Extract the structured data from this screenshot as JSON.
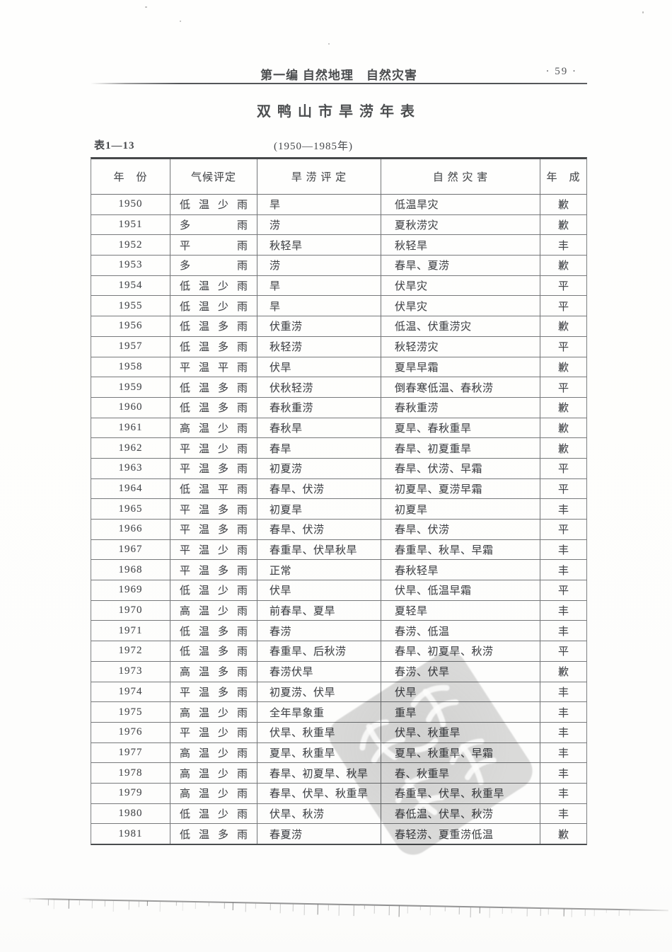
{
  "page": {
    "header": {
      "section_title": "第一编 自然地理　自然灾害",
      "page_number": "· 59 ·"
    },
    "title": "双鸭山市旱涝年表",
    "table_label": "表1—13",
    "period": "(1950—1985年)",
    "columns": [
      "年　份",
      "气候评定",
      "旱 涝 评 定",
      "自 然 灾 害",
      "年　成"
    ],
    "rows": [
      {
        "year": "1950",
        "climate": "低温少雨",
        "assessment": "旱",
        "disasters": "低温旱灾",
        "harvest": "歉"
      },
      {
        "year": "1951",
        "climate": "多雨",
        "assessment": "涝",
        "disasters": "夏秋涝灾",
        "harvest": "歉"
      },
      {
        "year": "1952",
        "climate": "平雨",
        "assessment": "秋轻旱",
        "disasters": "秋轻旱",
        "harvest": "丰"
      },
      {
        "year": "1953",
        "climate": "多雨",
        "assessment": "涝",
        "disasters": "春旱、夏涝",
        "harvest": "歉"
      },
      {
        "year": "1954",
        "climate": "低温少雨",
        "assessment": "旱",
        "disasters": "伏旱灾",
        "harvest": "平"
      },
      {
        "year": "1955",
        "climate": "低温少雨",
        "assessment": "旱",
        "disasters": "伏旱灾",
        "harvest": "平"
      },
      {
        "year": "1956",
        "climate": "低温多雨",
        "assessment": "伏重涝",
        "disasters": "低温、伏重涝灾",
        "harvest": "歉"
      },
      {
        "year": "1957",
        "climate": "低温多雨",
        "assessment": "秋轻涝",
        "disasters": "秋轻涝灾",
        "harvest": "平"
      },
      {
        "year": "1958",
        "climate": "平温平雨",
        "assessment": "伏旱",
        "disasters": "夏旱早霜",
        "harvest": "歉"
      },
      {
        "year": "1959",
        "climate": "低温多雨",
        "assessment": "伏秋轻涝",
        "disasters": "倒春寒低温、春秋涝",
        "harvest": "平"
      },
      {
        "year": "1960",
        "climate": "低温多雨",
        "assessment": "春秋重涝",
        "disasters": "春秋重涝",
        "harvest": "歉"
      },
      {
        "year": "1961",
        "climate": "高温少雨",
        "assessment": "春秋旱",
        "disasters": "夏旱、春秋重旱",
        "harvest": "歉"
      },
      {
        "year": "1962",
        "climate": "平温少雨",
        "assessment": "春旱",
        "disasters": "春旱、初夏重旱",
        "harvest": "歉"
      },
      {
        "year": "1963",
        "climate": "平温多雨",
        "assessment": "初夏涝",
        "disasters": "春旱、伏涝、早霜",
        "harvest": "平"
      },
      {
        "year": "1964",
        "climate": "低温平雨",
        "assessment": "春旱、伏涝",
        "disasters": "初夏旱、夏涝早霜",
        "harvest": "平"
      },
      {
        "year": "1965",
        "climate": "平温多雨",
        "assessment": "初夏旱",
        "disasters": "初夏旱",
        "harvest": "丰"
      },
      {
        "year": "1966",
        "climate": "平温多雨",
        "assessment": "春旱、伏涝",
        "disasters": "春旱、伏涝",
        "harvest": "平"
      },
      {
        "year": "1967",
        "climate": "平温少雨",
        "assessment": "春重旱、伏旱秋旱",
        "disasters": "春重旱、秋旱、早霜",
        "harvest": "丰"
      },
      {
        "year": "1968",
        "climate": "平温多雨",
        "assessment": "正常",
        "disasters": "春秋轻旱",
        "harvest": "丰"
      },
      {
        "year": "1969",
        "climate": "低温少雨",
        "assessment": "伏旱",
        "disasters": "伏旱、低温早霜",
        "harvest": "平"
      },
      {
        "year": "1970",
        "climate": "高温少雨",
        "assessment": "前春旱、夏旱",
        "disasters": "夏轻旱",
        "harvest": "丰"
      },
      {
        "year": "1971",
        "climate": "低温多雨",
        "assessment": "春涝",
        "disasters": "春涝、低温",
        "harvest": "丰"
      },
      {
        "year": "1972",
        "climate": "低温多雨",
        "assessment": "春重旱、后秋涝",
        "disasters": "春旱、初夏旱、秋涝",
        "harvest": "平"
      },
      {
        "year": "1973",
        "climate": "高温多雨",
        "assessment": "春涝伏旱",
        "disasters": "春涝、伏旱",
        "harvest": "歉"
      },
      {
        "year": "1974",
        "climate": "平温多雨",
        "assessment": "初夏涝、伏旱",
        "disasters": "伏旱",
        "harvest": "丰"
      },
      {
        "year": "1975",
        "climate": "高温少雨",
        "assessment": "全年旱象重",
        "disasters": "重旱",
        "harvest": "丰"
      },
      {
        "year": "1976",
        "climate": "平温少雨",
        "assessment": "伏旱、秋重旱",
        "disasters": "伏旱、秋重旱",
        "harvest": "丰"
      },
      {
        "year": "1977",
        "climate": "高温少雨",
        "assessment": "夏旱、秋重旱",
        "disasters": "夏旱、秋重旱、早霜",
        "harvest": "丰"
      },
      {
        "year": "1978",
        "climate": "高温少雨",
        "assessment": "春旱、初夏旱、秋旱",
        "disasters": "春、秋重旱",
        "harvest": "丰"
      },
      {
        "year": "1979",
        "climate": "高温少雨",
        "assessment": "春旱、伏旱、秋重旱",
        "disasters": "春重旱、伏旱、秋重旱",
        "harvest": "丰"
      },
      {
        "year": "1980",
        "climate": "低温少雨",
        "assessment": "伏旱、秋涝",
        "disasters": "春低温、伏旱、秋涝",
        "harvest": "丰"
      },
      {
        "year": "1981",
        "climate": "低温多雨",
        "assessment": "春夏涝",
        "disasters": "春轻涝、夏重涝低温",
        "harvest": "歉"
      }
    ]
  },
  "watermark": {
    "type": "seal-stamp",
    "legible": false
  }
}
